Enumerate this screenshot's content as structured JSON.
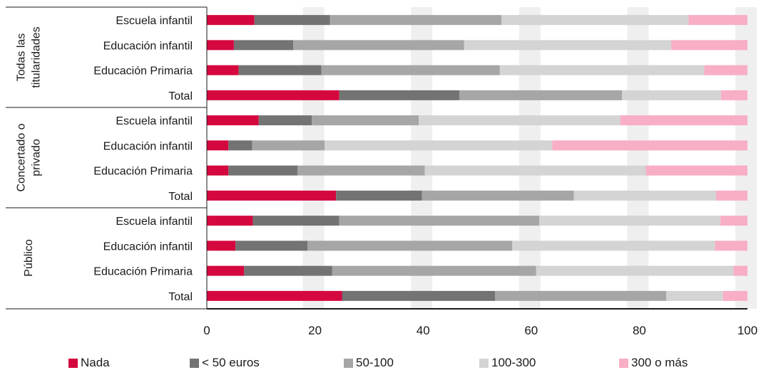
{
  "chart_data": {
    "type": "bar",
    "orientation": "horizontal",
    "stacked": true,
    "xlim": [
      0,
      100
    ],
    "xticks": [
      0,
      20,
      40,
      60,
      80,
      100
    ],
    "grid": "alternating vertical bands",
    "legend_position": "bottom",
    "groups": [
      {
        "name": "Todas las titularidades",
        "name_lines": [
          "Todas las",
          "titularidades"
        ]
      },
      {
        "name": "Concertado o privado",
        "name_lines": [
          "Concertado o",
          "privado"
        ]
      },
      {
        "name": "Público",
        "name_lines": [
          "Público"
        ]
      }
    ],
    "categories": [
      "Escuela infantil",
      "Educación infantil",
      "Educación Primaria",
      "Total",
      "Escuela infantil",
      "Educación infantil",
      "Educación Primaria",
      "Total",
      "Escuela infantil",
      "Educación infantil",
      "Educación Primaria",
      "Total"
    ],
    "category_group": [
      0,
      0,
      0,
      0,
      1,
      1,
      1,
      1,
      2,
      2,
      2,
      2
    ],
    "series": [
      {
        "name": "Nada",
        "color": "#d5073f",
        "values": [
          8.8,
          5.0,
          5.9,
          24.5,
          9.6,
          4.0,
          4.0,
          23.9,
          8.5,
          5.3,
          6.9,
          25.0
        ]
      },
      {
        "name": "< 50 euros",
        "color": "#737373",
        "values": [
          14.0,
          11.0,
          15.3,
          22.2,
          9.8,
          4.4,
          12.8,
          15.9,
          16.0,
          13.3,
          16.3,
          28.3
        ]
      },
      {
        "name": "50-100",
        "color": "#a6a6a6",
        "values": [
          31.7,
          31.6,
          33.0,
          30.1,
          19.8,
          13.4,
          23.5,
          28.1,
          37.0,
          37.9,
          37.7,
          31.7
        ]
      },
      {
        "name": "100-300",
        "color": "#d4d4d4",
        "values": [
          34.6,
          38.3,
          37.8,
          18.3,
          37.3,
          42.1,
          40.9,
          26.3,
          33.5,
          37.5,
          36.5,
          10.5
        ]
      },
      {
        "name": "300 o más",
        "color": "#f8aec4",
        "values": [
          10.9,
          14.1,
          8.0,
          4.9,
          23.5,
          36.1,
          18.8,
          5.8,
          5.0,
          6.0,
          2.6,
          4.5
        ]
      }
    ]
  }
}
